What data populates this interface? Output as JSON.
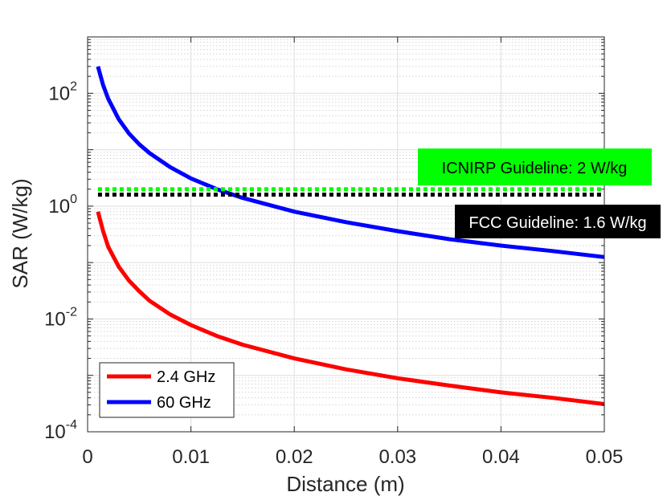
{
  "chart_data": {
    "type": "line",
    "title": "",
    "xlabel": "Distance (m)",
    "ylabel": "SAR (W/kg)",
    "xscale": "linear",
    "yscale": "log",
    "xlim": [
      0,
      0.05
    ],
    "ylim": [
      0.0001,
      1000
    ],
    "grid": true,
    "minor_grid": true,
    "xticks": [
      0,
      0.01,
      0.02,
      0.03,
      0.04,
      0.05
    ],
    "xtick_labels": [
      "0",
      "0.01",
      "0.02",
      "0.03",
      "0.04",
      "0.05"
    ],
    "yticks": [
      0.0001,
      0.01,
      1,
      100
    ],
    "ytick_labels": [
      {
        "base": "10",
        "exp": "-4"
      },
      {
        "base": "10",
        "exp": "-2"
      },
      {
        "base": "10",
        "exp": "0"
      },
      {
        "base": "10",
        "exp": "2"
      }
    ],
    "series": [
      {
        "name": "2.4 GHz",
        "color": "#ff0000",
        "style": "solid",
        "x": [
          0.001,
          0.0015,
          0.002,
          0.003,
          0.004,
          0.005,
          0.006,
          0.008,
          0.01,
          0.0125,
          0.015,
          0.02,
          0.025,
          0.03,
          0.035,
          0.04,
          0.045,
          0.05
        ],
        "y": [
          0.8,
          0.36,
          0.19,
          0.085,
          0.048,
          0.031,
          0.021,
          0.012,
          0.0078,
          0.005,
          0.0035,
          0.002,
          0.00128,
          0.00089,
          0.00066,
          0.0005,
          0.0004,
          0.00031
        ]
      },
      {
        "name": "60 GHz",
        "color": "#0000ff",
        "style": "solid",
        "x": [
          0.001,
          0.0015,
          0.002,
          0.003,
          0.004,
          0.005,
          0.006,
          0.008,
          0.01,
          0.0125,
          0.015,
          0.02,
          0.025,
          0.03,
          0.035,
          0.04,
          0.045,
          0.05
        ],
        "y": [
          300,
          140,
          80,
          35,
          19.5,
          12.5,
          8.7,
          4.9,
          3.1,
          2.0,
          1.4,
          0.8,
          0.52,
          0.36,
          0.26,
          0.2,
          0.16,
          0.125
        ]
      },
      {
        "name": "ICNIRP Guideline",
        "color": "#00ff00",
        "style": "dotted",
        "x": [
          0.001,
          0.05
        ],
        "y": [
          2,
          2
        ]
      },
      {
        "name": "FCC Guideline",
        "color": "#000000",
        "style": "dotted",
        "x": [
          0.001,
          0.05
        ],
        "y": [
          1.6,
          1.6
        ]
      }
    ],
    "legend": {
      "position": "bottom-left",
      "entries": [
        {
          "label": "2.4 GHz",
          "color": "#ff0000"
        },
        {
          "label": "60 GHz",
          "color": "#0000ff"
        }
      ]
    },
    "annotations": [
      {
        "text": "ICNIRP Guideline: 2 W/kg",
        "background": "#00ff00",
        "color": "#000000"
      },
      {
        "text": "FCC Guideline: 1.6 W/kg",
        "background": "#000000",
        "color": "#ffffff"
      }
    ]
  }
}
